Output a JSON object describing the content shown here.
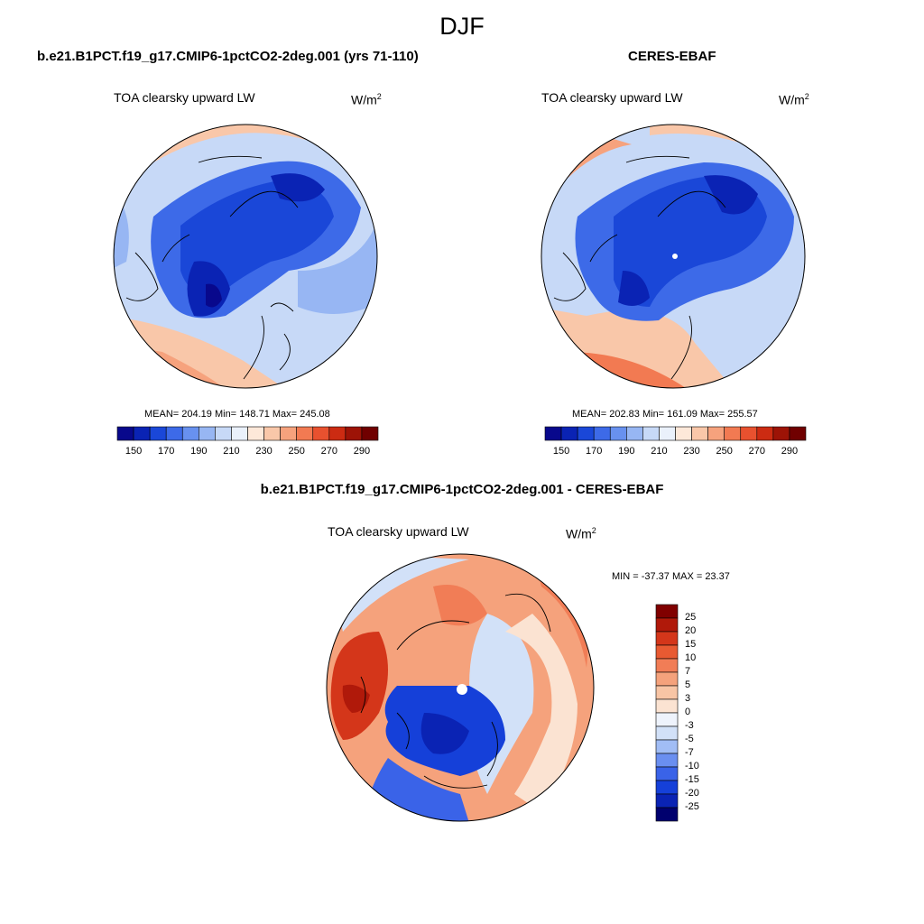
{
  "figure": {
    "title": "DJF",
    "colors": {
      "scale": [
        "#08088c",
        "#0a23b4",
        "#1a47d8",
        "#3d6ae8",
        "#6891ef",
        "#97b6f3",
        "#c7d9f7",
        "#eaf1fb",
        "#fde8d9",
        "#f9c7a9",
        "#f6a27d",
        "#f27a52",
        "#e8512f",
        "#cc2b12",
        "#9d1306",
        "#700000"
      ],
      "diff_scale": [
        "#00006e",
        "#0a23b4",
        "#1540d9",
        "#3a63e8",
        "#6a8ff0",
        "#a1bdf5",
        "#d2e1f8",
        "#eef3fc",
        "#fbe3d2",
        "#f8c5a5",
        "#f5a27c",
        "#f17d56",
        "#e85a32",
        "#d4361a",
        "#b0190a",
        "#800000"
      ]
    }
  },
  "left": {
    "title": "b.e21.B1PCT.f19_g17.CMIP6-1pctCO2-2deg.001 (yrs 71-110)",
    "variable": "TOA clearsky upward LW",
    "units": "W/m",
    "units_exp": "2",
    "stats": "MEAN= 204.19  Min= 148.71  Max= 245.08"
  },
  "right": {
    "title": "CERES-EBAF",
    "variable": "TOA clearsky upward LW",
    "units": "W/m",
    "units_exp": "2",
    "stats": "MEAN= 202.83  Min= 161.09  Max= 255.57"
  },
  "diff": {
    "title": "b.e21.B1PCT.f19_g17.CMIP6-1pctCO2-2deg.001 - CERES-EBAF",
    "variable": "TOA clearsky upward LW",
    "units": "W/m",
    "units_exp": "2",
    "minmax": "MIN = -37.37 MAX =  23.37"
  },
  "colorbar": {
    "ticks": [
      "150",
      "170",
      "190",
      "210",
      "230",
      "250",
      "270",
      "290"
    ]
  },
  "diff_colorbar": {
    "ticks": [
      "25",
      "20",
      "15",
      "10",
      "7",
      "5",
      "3",
      "0",
      "-3",
      "-5",
      "-7",
      "-10",
      "-15",
      "-20",
      "-25"
    ]
  }
}
